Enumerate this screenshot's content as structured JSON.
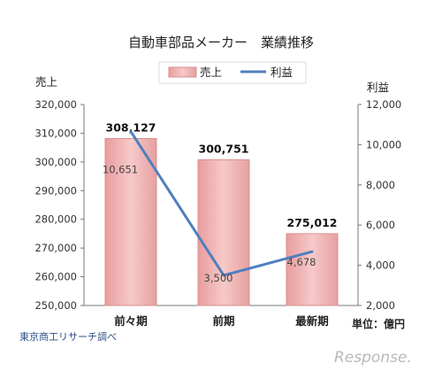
{
  "chart_data": {
    "type": "bar",
    "title": "自動車部品メーカー　業績推移",
    "categories": [
      "前々期",
      "前期",
      "最新期"
    ],
    "y_left_label": "売上",
    "y_right_label": "利益",
    "y_left_range": [
      250000,
      320000
    ],
    "y_left_ticks": [
      "250,000",
      "260,000",
      "270,000",
      "280,000",
      "290,000",
      "300,000",
      "310,000",
      "320,000"
    ],
    "y_right_range": [
      2000,
      12000
    ],
    "y_right_ticks": [
      "2,000",
      "4,000",
      "6,000",
      "8,000",
      "10,000",
      "12,000"
    ],
    "series": [
      {
        "name": "売上",
        "type": "bar",
        "axis": "left",
        "values": [
          308127,
          300751,
          275012
        ],
        "labels": [
          "308,127",
          "300,751",
          "275,012"
        ]
      },
      {
        "name": "利益",
        "type": "line",
        "axis": "right",
        "values": [
          10651,
          3500,
          4678
        ],
        "labels": [
          "10,651",
          "3,500",
          "4,678"
        ]
      }
    ],
    "legend": "top-center",
    "grid": false,
    "colors": {
      "bar_fill": "#f2b2b2",
      "bar_edge": "#d98f8f",
      "line": "#4f7fbf"
    }
  },
  "unit_note": "単位：億円",
  "source_note": "東京商工リサーチ調べ",
  "brand": "Response."
}
